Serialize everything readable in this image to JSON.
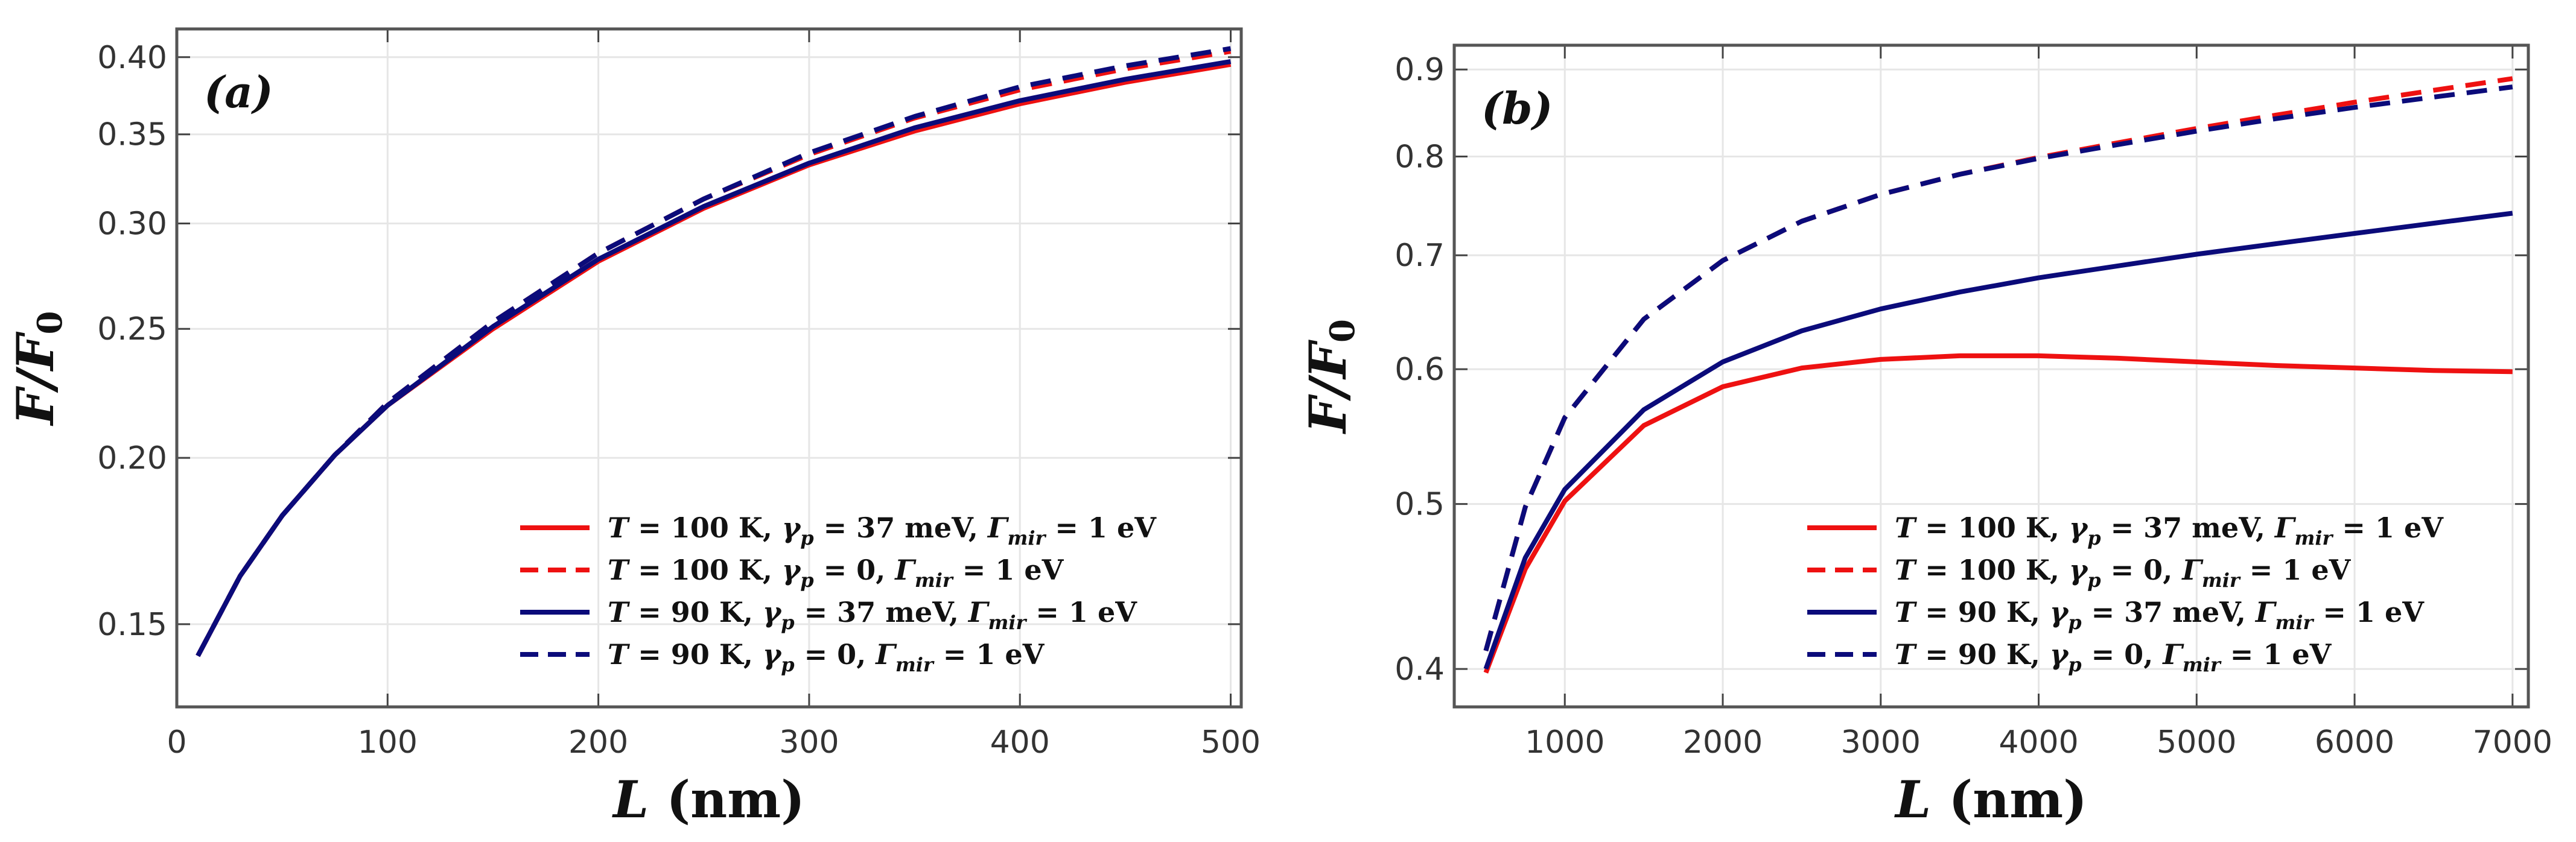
{
  "chart_data": [
    {
      "type": "line",
      "panel_label": "(a)",
      "xlabel": "L (nm)",
      "ylabel": "F/F0",
      "xlim": [
        0,
        505
      ],
      "ylim": [
        0.13,
        0.42
      ],
      "y_scale": "log",
      "grid": true,
      "xticks": [
        0,
        100,
        200,
        300,
        400,
        500
      ],
      "yticks": [
        0.15,
        0.2,
        0.25,
        0.3,
        0.35,
        0.4
      ],
      "xtick_labels": [
        "0",
        "100",
        "200",
        "300",
        "400",
        "500"
      ],
      "ytick_labels": [
        "0.15",
        "0.20",
        "0.25",
        "0.30",
        "0.35",
        "0.40"
      ],
      "legend_position": "bottom-right",
      "series": [
        {
          "name": "T = 100 K, γp = 37 meV, Γmir = 1 eV",
          "color": "#ee1111",
          "dash": "solid",
          "x": [
            10,
            30,
            50,
            75,
            100,
            150,
            200,
            250,
            300,
            350,
            400,
            450,
            500
          ],
          "y": [
            0.142,
            0.163,
            0.181,
            0.201,
            0.219,
            0.25,
            0.281,
            0.308,
            0.332,
            0.352,
            0.369,
            0.383,
            0.395
          ]
        },
        {
          "name": "T = 100 K, γp = 0, Γmir = 1 eV",
          "color": "#ee1111",
          "dash": "dashed",
          "x": [
            10,
            30,
            50,
            75,
            100,
            150,
            200,
            250,
            300,
            350,
            400,
            450,
            500
          ],
          "y": [
            0.142,
            0.163,
            0.181,
            0.201,
            0.22,
            0.253,
            0.285,
            0.313,
            0.338,
            0.36,
            0.378,
            0.392,
            0.404
          ]
        },
        {
          "name": "T = 90 K, γp = 37 meV, Γmir = 1 eV",
          "color": "#0b0b7a",
          "dash": "solid",
          "x": [
            10,
            30,
            50,
            75,
            100,
            150,
            200,
            250,
            300,
            350,
            400,
            450,
            500
          ],
          "y": [
            0.142,
            0.163,
            0.181,
            0.201,
            0.219,
            0.251,
            0.282,
            0.309,
            0.333,
            0.354,
            0.371,
            0.385,
            0.397
          ]
        },
        {
          "name": "T = 90 K, γp = 0, Γmir = 1 eV",
          "color": "#0b0b7a",
          "dash": "dashed",
          "x": [
            10,
            30,
            50,
            75,
            100,
            150,
            200,
            250,
            300,
            350,
            400,
            450,
            500
          ],
          "y": [
            0.142,
            0.163,
            0.181,
            0.201,
            0.22,
            0.253,
            0.285,
            0.313,
            0.339,
            0.361,
            0.38,
            0.394,
            0.406
          ]
        }
      ]
    },
    {
      "type": "line",
      "panel_label": "(b)",
      "xlabel": "L (nm)",
      "ylabel": "F/F0",
      "xlim": [
        300,
        7100
      ],
      "ylim": [
        0.38,
        0.93
      ],
      "y_scale": "log",
      "grid": true,
      "xticks": [
        1000,
        2000,
        3000,
        4000,
        5000,
        6000,
        7000
      ],
      "yticks": [
        0.4,
        0.5,
        0.6,
        0.7,
        0.8,
        0.9
      ],
      "xtick_labels": [
        "1000",
        "2000",
        "3000",
        "4000",
        "5000",
        "6000",
        "7000"
      ],
      "ytick_labels": [
        "0.4",
        "0.5",
        "0.6",
        "0.7",
        "0.8",
        "0.9"
      ],
      "legend_position": "bottom-right",
      "series": [
        {
          "name": "T = 100 K, γp = 37 meV, Γmir = 1 eV",
          "color": "#ee1111",
          "dash": "solid",
          "x": [
            500,
            750,
            1000,
            1500,
            2000,
            2500,
            3000,
            3500,
            4000,
            4500,
            5000,
            5500,
            6000,
            6500,
            7000
          ],
          "y": [
            0.398,
            0.458,
            0.502,
            0.556,
            0.586,
            0.601,
            0.608,
            0.611,
            0.611,
            0.609,
            0.606,
            0.603,
            0.601,
            0.599,
            0.598
          ]
        },
        {
          "name": "T = 100 K, γp = 0, Γmir = 1 eV",
          "color": "#ee1111",
          "dash": "dashed",
          "x": [
            500,
            750,
            1000,
            1500,
            2000,
            2500,
            3000,
            3500,
            4000,
            4500,
            5000,
            5500,
            6000,
            6500,
            7000
          ],
          "y": [
            0.41,
            0.498,
            0.562,
            0.642,
            0.695,
            0.733,
            0.76,
            0.781,
            0.799,
            0.815,
            0.831,
            0.846,
            0.861,
            0.875,
            0.889
          ]
        },
        {
          "name": "T = 90 K, γp = 37 meV, Γmir = 1 eV",
          "color": "#0b0b7a",
          "dash": "solid",
          "x": [
            500,
            750,
            1000,
            1500,
            2000,
            2500,
            3000,
            3500,
            4000,
            4500,
            5000,
            5500,
            6000,
            6500,
            7000
          ],
          "y": [
            0.4,
            0.465,
            0.51,
            0.568,
            0.606,
            0.632,
            0.651,
            0.666,
            0.679,
            0.69,
            0.701,
            0.711,
            0.721,
            0.731,
            0.741
          ]
        },
        {
          "name": "T = 90 K, γp = 0, Γmir = 1 eV",
          "color": "#0b0b7a",
          "dash": "dashed",
          "x": [
            500,
            750,
            1000,
            1500,
            2000,
            2500,
            3000,
            3500,
            4000,
            4500,
            5000,
            5500,
            6000,
            6500,
            7000
          ],
          "y": [
            0.41,
            0.498,
            0.562,
            0.642,
            0.695,
            0.733,
            0.76,
            0.781,
            0.798,
            0.813,
            0.828,
            0.842,
            0.855,
            0.867,
            0.879
          ]
        }
      ]
    }
  ]
}
